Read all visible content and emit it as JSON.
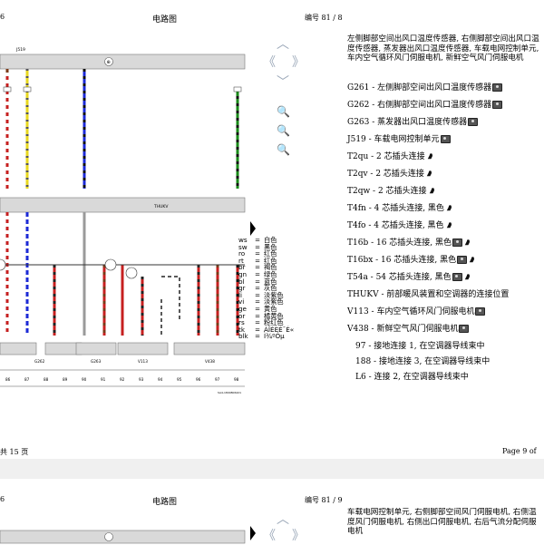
{
  "page1": {
    "header_left": "6",
    "header_title": "电路图",
    "header_number": "编号 81 / 8",
    "description": "左侧脚部空间出风口温度传感器, 右侧脚部空间出风口温度传感器, 蒸发器出风口温度传感器, 车载电网控制单元, 车内空气循环风门伺服电机, 新鲜空气风门伺服电机",
    "items": [
      {
        "text": "G261 - 左侧脚部空间出风口温度传感器",
        "icons": [
          "camera"
        ]
      },
      {
        "text": "G262 - 右侧脚部空间出风口温度传感器",
        "icons": [
          "camera"
        ]
      },
      {
        "text": "G263 - 蒸发器出风口温度传感器",
        "icons": [
          "camera"
        ]
      },
      {
        "text": "J519 - 车载电网控制单元",
        "icons": [
          "camera"
        ]
      },
      {
        "text": "T2qu - 2 芯插头连接",
        "icons": [
          "connector"
        ]
      },
      {
        "text": "T2qv - 2 芯插头连接",
        "icons": [
          "connector"
        ]
      },
      {
        "text": "T2qw - 2 芯插头连接",
        "icons": [
          "connector"
        ]
      },
      {
        "text": "T4fn - 4 芯插头连接, 黑色",
        "icons": [
          "connector"
        ]
      },
      {
        "text": "T4fo - 4 芯插头连接, 黑色",
        "icons": [
          "connector"
        ]
      },
      {
        "text": "T16b - 16 芯插头连接, 黑色",
        "icons": [
          "camera",
          "connector"
        ]
      },
      {
        "text": "T16bx - 16 芯插头连接, 黑色",
        "icons": [
          "camera",
          "connector"
        ]
      },
      {
        "text": "T54a - 54 芯插头连接, 黑色",
        "icons": [
          "camera",
          "connector"
        ]
      },
      {
        "text": "THUKV - 前部暖风装置和空调器的连接位置",
        "icons": []
      },
      {
        "text": "V113 - 车内空气循环风门伺服电机",
        "icons": [
          "camera"
        ]
      },
      {
        "text": "V438 - 新鲜空气风门伺服电机",
        "icons": [
          "camera"
        ]
      },
      {
        "text": "97 - 接地连接 1, 在空调器导线束中",
        "icons": [],
        "indent": true
      },
      {
        "text": "188 - 接地连接 3, 在空调器导线束中",
        "icons": [],
        "indent": true
      },
      {
        "text": "L6 - 连接 2, 在空调器导线束中",
        "icons": [],
        "indent": true
      }
    ],
    "legend": [
      {
        "code": "ws",
        "eq": "=",
        "name": "白色"
      },
      {
        "code": "sw",
        "eq": "=",
        "name": "黑色"
      },
      {
        "code": "ro",
        "eq": "=",
        "name": "红色"
      },
      {
        "code": "rt",
        "eq": "=",
        "name": "红色"
      },
      {
        "code": "br",
        "eq": "=",
        "name": "褐色"
      },
      {
        "code": "gn",
        "eq": "=",
        "name": "绿色"
      },
      {
        "code": "bl",
        "eq": "=",
        "name": "蓝色"
      },
      {
        "code": "gr",
        "eq": "=",
        "name": "灰色"
      },
      {
        "code": "li",
        "eq": "=",
        "name": "淡紫色"
      },
      {
        "code": "vi",
        "eq": "=",
        "name": "淡紫色"
      },
      {
        "code": "ge",
        "eq": "=",
        "name": "黄色"
      },
      {
        "code": "or",
        "eq": "=",
        "name": "橘黄色"
      },
      {
        "code": "rs",
        "eq": "=",
        "name": "粉红色"
      },
      {
        "code": "tk",
        "eq": "=",
        "name": "ÀÎÉÈÉ¯É«"
      },
      {
        "code": "blk",
        "eq": "=",
        "name": "Ì¾ºÓµ"
      }
    ],
    "diagram": {
      "top_label": "J519",
      "mid_label": "THUKV",
      "component_labels": [
        "G262",
        "G263",
        "V113",
        "V438"
      ],
      "bottom_numbers": [
        "86",
        "87",
        "88",
        "89",
        "90",
        "91",
        "92",
        "93",
        "94",
        "95",
        "96",
        "97",
        "98"
      ],
      "footer_code": "SA4-1800806421"
    }
  },
  "footer": {
    "left": "共 15 页",
    "right": "Page 9 of"
  },
  "page2": {
    "header_left": "6",
    "header_title": "电路图",
    "header_number": "编号 81 / 9",
    "description": "车载电网控制单元, 右侧脚部空间风门伺服电机, 右侧温度风门伺服电机, 右侧出口伺服电机, 右后气流分配伺服电机"
  },
  "colors": {
    "wire_red": "#c62020",
    "wire_yellow": "#e8d820",
    "wire_blue": "#1c2ad6",
    "wire_green": "#1a8a1a",
    "wire_brown": "#7a3a18",
    "wire_gray": "#9a9a9a",
    "nav_arrow": "#9aa7b8"
  }
}
